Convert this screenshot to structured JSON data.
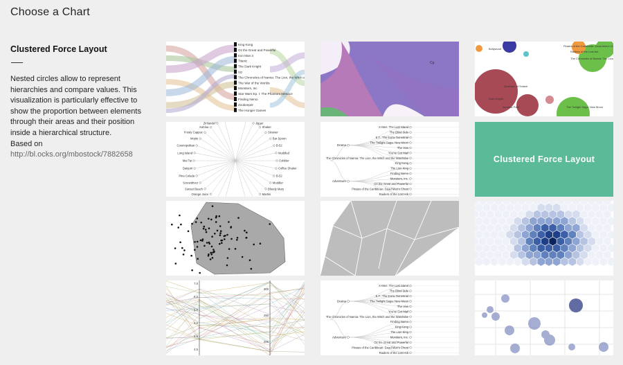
{
  "page": {
    "title": "Choose a Chart"
  },
  "sidebar": {
    "heading": "Clustered Force Layout",
    "description": "Nested circles allow to represent hierarchies and compare values. This visualization is particularly effective to show the proportion between elements through their areas and their position inside a hierarchical structure.",
    "based_label": "Based on",
    "link": "http://bl.ocks.org/mbostock/7882658"
  },
  "thumbs": {
    "alluvial": {
      "labels": [
        "King Kong",
        "Oz the Great and Powerful",
        "Iron Man 3",
        "Titanic",
        "The Dark Knight",
        "Up",
        "The Chronicles of Narnia: The Lion, the Witch and the Wardrobe",
        "The War of the Worlds",
        "Monsters, Inc",
        "Star Wars Ep. I: The Phantom Menace",
        "Finding Nemo",
        "Zookeeper",
        "The Hunger Games"
      ]
    },
    "streamgraph": {
      "label": "Cp"
    },
    "circle_packing": {
      "labels": [
        "Pirates of the Caribbean: Dead Man's Chest",
        "Raiders of the Lost Ark",
        "The Chronicles of Narnia: The Lion",
        "Quantum of Solace",
        "Dark Knight",
        "Jurassic Park",
        "The Twilight Saga: New Moon",
        "Bollywood"
      ]
    },
    "radial": {
      "left": [
        "Margarita",
        "Zinfandel",
        "Kahlua",
        "Frosty Cappuc",
        "Mojito",
        "Cosmopolitan",
        "Long Island",
        "Mai Tai",
        "Daiquiri",
        "Pina Colada",
        "Screwdriver",
        "Sunset Beach",
        "Orange Juice",
        "Bloody Mary",
        "Mimosa"
      ],
      "right": [
        "Muddler",
        "Jigger",
        "Shaker",
        "Strainer",
        "Bar Spoon",
        "B-52",
        "Muddled",
        "Cobbler",
        "Coffee Shaker",
        "B-52",
        "Muddler",
        "Bloody Mary",
        "Martini",
        "Negroni",
        "Sidecar"
      ]
    },
    "dendrogram": {
      "nodes": [
        "Drama",
        "Adventure"
      ],
      "leaves": [
        "X-Men: The Last Stand",
        "The Blind Side",
        "E.T.: The Extra-Terrestrial",
        "The Twilight Saga: New Moon",
        "The Vow",
        "You've Got Mail",
        "The Chronicles of Narnia: The Lion, the Witch and the Wardrobe",
        "King Kong",
        "The Lion King",
        "Finding Nemo",
        "Monsters, Inc.",
        "Oz the Great and Powerful",
        "Pirates of the Caribbean: Dead Man's Chest",
        "Raiders of the Lost Ark"
      ]
    },
    "highlight": {
      "label": "Clustered Force Layout"
    },
    "parallel": {
      "ticks_a": [
        "7.0",
        "6.5",
        "6.0",
        "5.5",
        "5.0",
        "4.5"
      ],
      "ticks_b": [
        "300",
        "250",
        "200"
      ]
    },
    "cluster_dendrogram": {
      "nodes": [
        "Drama",
        "Adventure"
      ],
      "leaves": [
        "X-Men: The Last Stand",
        "The Blind Side",
        "E.T.: The Extra-Terrestrial",
        "The Twilight Saga: New Moon",
        "The Vow",
        "You've Got Mail",
        "The Chronicles of Narnia: The Lion, the Witch and the Wardrobe",
        "Finding Nemo",
        "King Kong",
        "The Lion King",
        "Monsters, Inc.",
        "Oz the Great and Powerful",
        "Pirates of the Caribbean: Dead Man's Chest",
        "Raiders of the Lost Ark"
      ]
    }
  },
  "colors": {
    "background": "#efefef",
    "highlight": "#5bba98",
    "link": "#666666"
  }
}
